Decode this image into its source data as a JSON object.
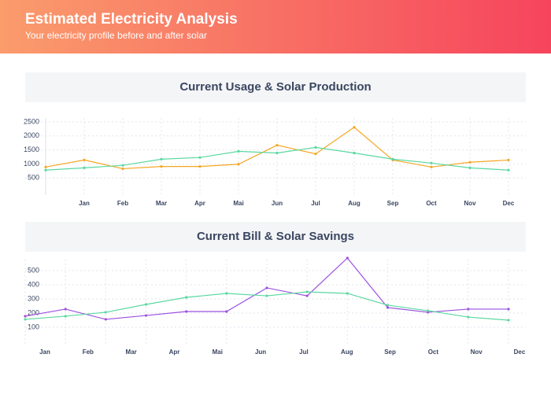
{
  "header": {
    "title": "Estimated Electricity Analysis",
    "subtitle": "Your electricity profile before and after solar"
  },
  "chart_data": [
    {
      "type": "line",
      "title": "Current Usage & Solar Production",
      "categories": [
        null,
        "Jan",
        "Feb",
        "Mar",
        "Apr",
        "Mai",
        "Jun",
        "Jul",
        "Aug",
        "Sep",
        "Oct",
        "Nov",
        "Dec"
      ],
      "series": [
        {
          "color": "#f5a623",
          "values": [
            890,
            1140,
            830,
            910,
            910,
            990,
            1670,
            1360,
            2310,
            1140,
            890,
            1060,
            1140
          ]
        },
        {
          "color": "#5ad8a0",
          "values": [
            780,
            860,
            950,
            1170,
            1230,
            1450,
            1390,
            1590,
            1390,
            1170,
            1030,
            860,
            780
          ]
        }
      ],
      "ylim": [
        0,
        2500
      ],
      "yticks": [
        500,
        1000,
        1500,
        2000,
        2500
      ],
      "grid": true
    },
    {
      "type": "line",
      "title": "Current Bill & Solar Savings",
      "categories": [
        null,
        "Jan",
        "Feb",
        "Mar",
        "Apr",
        "Mai",
        "Jun",
        "Jul",
        "Aug",
        "Sep",
        "Oct",
        "Nov",
        "Dec"
      ],
      "series": [
        {
          "color": "#9b51e0",
          "values": [
            178,
            228,
            156,
            183,
            211,
            211,
            378,
            322,
            589,
            239,
            206,
            228,
            228
          ]
        },
        {
          "color": "#5ad8a0",
          "values": [
            156,
            178,
            206,
            261,
            311,
            339,
            322,
            350,
            339,
            256,
            217,
            172,
            150
          ]
        }
      ],
      "ylim": [
        0,
        600
      ],
      "yticks": [
        100,
        200,
        300,
        400,
        500
      ],
      "grid": true
    }
  ]
}
